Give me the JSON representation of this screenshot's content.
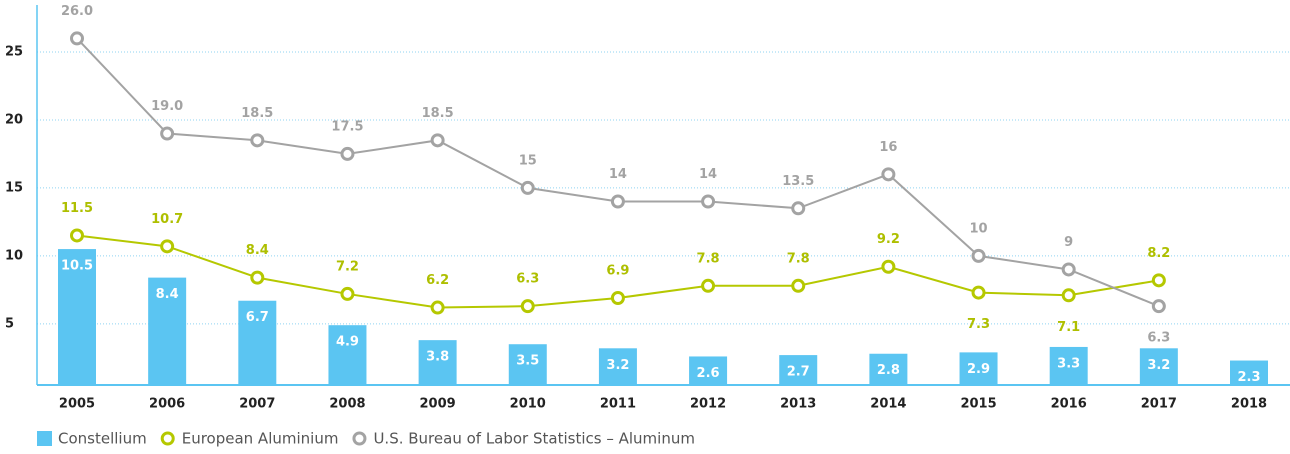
{
  "chart_data": {
    "type": "bar-line",
    "categories": [
      "2005",
      "2006",
      "2007",
      "2008",
      "2009",
      "2010",
      "2011",
      "2012",
      "2013",
      "2014",
      "2015",
      "2016",
      "2017",
      "2018"
    ],
    "series": [
      {
        "name": "Constellium",
        "color": "#5bc5f2",
        "type": "bar",
        "values": [
          10.5,
          8.4,
          6.7,
          4.9,
          3.8,
          3.5,
          3.2,
          2.6,
          2.7,
          2.8,
          2.9,
          3.3,
          3.2,
          2.3
        ]
      },
      {
        "name": "European Aluminium",
        "color": "#b5c800",
        "type": "line",
        "values": [
          11.5,
          10.7,
          8.4,
          7.2,
          6.2,
          6.3,
          6.9,
          7.8,
          7.8,
          9.2,
          7.3,
          7.1,
          8.2,
          null
        ]
      },
      {
        "name": "U.S. Bureau of Labor Statistics – Aluminum",
        "color": "#a3a3a3",
        "type": "line",
        "values": [
          26.0,
          19.0,
          18.5,
          17.5,
          18.5,
          15,
          14,
          14,
          13.5,
          16,
          10,
          9,
          6.3,
          null
        ],
        "value_labels": [
          "26.0",
          "19.0",
          "18.5",
          "17.5",
          "18.5",
          "15",
          "14",
          "14",
          "13.5",
          "16",
          "10",
          "9",
          "6.3",
          null
        ]
      }
    ],
    "ylim": [
      0.5,
      27.5
    ],
    "yticks": [
      5,
      10,
      15,
      20,
      25
    ],
    "grid": true
  }
}
